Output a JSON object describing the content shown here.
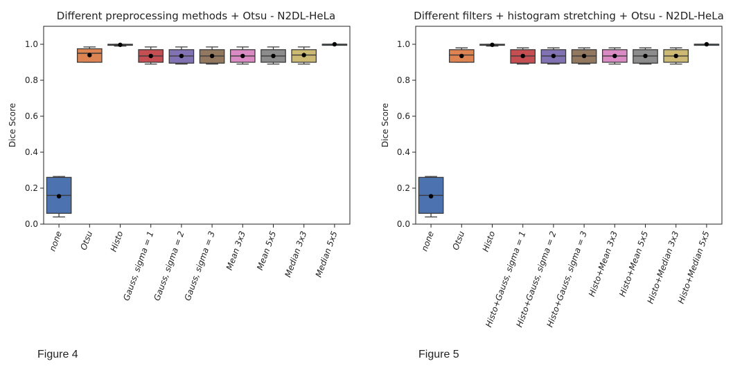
{
  "figures": [
    {
      "caption": "Figure 4"
    },
    {
      "caption": "Figure 5"
    }
  ],
  "chart_data": [
    {
      "type": "box",
      "title": "Different preprocessing methods + Otsu - N2DL-HeLa",
      "xlabel": "",
      "ylabel": "Dice Score",
      "ylim": [
        0.0,
        1.1
      ],
      "yticks": [
        0.0,
        0.2,
        0.4,
        0.6,
        0.8,
        1.0
      ],
      "grid": false,
      "categories": [
        "none",
        "Otsu",
        "Histo",
        "Gauss, sigma = 1",
        "Gauss, sigma = 2",
        "Gauss, sigma = 3",
        "Mean 3x3",
        "Mean 5x5",
        "Median 3x3",
        "Median 5x5"
      ],
      "colors": [
        "#4c72b0",
        "#dd8452",
        "#55a868",
        "#c44e52",
        "#8172b3",
        "#937860",
        "#da8bc3",
        "#8c8c8c",
        "#ccb974",
        "#64b5cd"
      ],
      "boxes": [
        {
          "whislo": 0.04,
          "q1": 0.06,
          "med": 0.16,
          "q3": 0.26,
          "whishi": 0.265,
          "mean": 0.155
        },
        {
          "whislo": 0.9,
          "q1": 0.9,
          "med": 0.95,
          "q3": 0.975,
          "whishi": 0.985,
          "mean": 0.94
        },
        {
          "whislo": 0.99,
          "q1": 0.995,
          "med": 0.998,
          "q3": 1.0,
          "whishi": 1.0,
          "mean": 0.997
        },
        {
          "whislo": 0.89,
          "q1": 0.9,
          "med": 0.935,
          "q3": 0.97,
          "whishi": 0.985,
          "mean": 0.935
        },
        {
          "whislo": 0.89,
          "q1": 0.895,
          "med": 0.935,
          "q3": 0.97,
          "whishi": 0.985,
          "mean": 0.935
        },
        {
          "whislo": 0.89,
          "q1": 0.895,
          "med": 0.935,
          "q3": 0.97,
          "whishi": 0.985,
          "mean": 0.935
        },
        {
          "whislo": 0.89,
          "q1": 0.9,
          "med": 0.935,
          "q3": 0.97,
          "whishi": 0.985,
          "mean": 0.935
        },
        {
          "whislo": 0.89,
          "q1": 0.9,
          "med": 0.935,
          "q3": 0.97,
          "whishi": 0.985,
          "mean": 0.935
        },
        {
          "whislo": 0.89,
          "q1": 0.9,
          "med": 0.94,
          "q3": 0.97,
          "whishi": 0.985,
          "mean": 0.94
        },
        {
          "whislo": 0.995,
          "q1": 0.998,
          "med": 1.0,
          "q3": 1.0,
          "whishi": 1.0,
          "mean": 1.0
        }
      ]
    },
    {
      "type": "box",
      "title": "Different filters + histogram stretching + Otsu - N2DL-HeLa",
      "xlabel": "",
      "ylabel": "Dice Score",
      "ylim": [
        0.0,
        1.1
      ],
      "yticks": [
        0.0,
        0.2,
        0.4,
        0.6,
        0.8,
        1.0
      ],
      "grid": false,
      "categories": [
        "none",
        "Otsu",
        "Histo",
        "Histo+Gauss, sigma = 1",
        "Histo+Gauss, sigma = 2",
        "Histo+Gauss, sigma = 3",
        "Histo+Mean 3x3",
        "Histo+Mean 5x5",
        "Histo+Median 3x3",
        "Histo+Median 5x5"
      ],
      "colors": [
        "#4c72b0",
        "#dd8452",
        "#55a868",
        "#c44e52",
        "#8172b3",
        "#937860",
        "#da8bc3",
        "#8c8c8c",
        "#ccb974",
        "#64b5cd"
      ],
      "boxes": [
        {
          "whislo": 0.04,
          "q1": 0.06,
          "med": 0.16,
          "q3": 0.26,
          "whishi": 0.265,
          "mean": 0.155
        },
        {
          "whislo": 0.9,
          "q1": 0.9,
          "med": 0.94,
          "q3": 0.97,
          "whishi": 0.98,
          "mean": 0.935
        },
        {
          "whislo": 0.99,
          "q1": 0.995,
          "med": 0.998,
          "q3": 1.0,
          "whishi": 1.0,
          "mean": 0.997
        },
        {
          "whislo": 0.89,
          "q1": 0.895,
          "med": 0.935,
          "q3": 0.97,
          "whishi": 0.98,
          "mean": 0.935
        },
        {
          "whislo": 0.89,
          "q1": 0.895,
          "med": 0.935,
          "q3": 0.97,
          "whishi": 0.98,
          "mean": 0.935
        },
        {
          "whislo": 0.89,
          "q1": 0.895,
          "med": 0.935,
          "q3": 0.97,
          "whishi": 0.98,
          "mean": 0.935
        },
        {
          "whislo": 0.89,
          "q1": 0.9,
          "med": 0.935,
          "q3": 0.97,
          "whishi": 0.98,
          "mean": 0.935
        },
        {
          "whislo": 0.89,
          "q1": 0.895,
          "med": 0.935,
          "q3": 0.97,
          "whishi": 0.98,
          "mean": 0.935
        },
        {
          "whislo": 0.89,
          "q1": 0.9,
          "med": 0.935,
          "q3": 0.97,
          "whishi": 0.98,
          "mean": 0.935
        },
        {
          "whislo": 0.995,
          "q1": 0.998,
          "med": 1.0,
          "q3": 1.0,
          "whishi": 1.0,
          "mean": 1.0
        }
      ]
    }
  ]
}
